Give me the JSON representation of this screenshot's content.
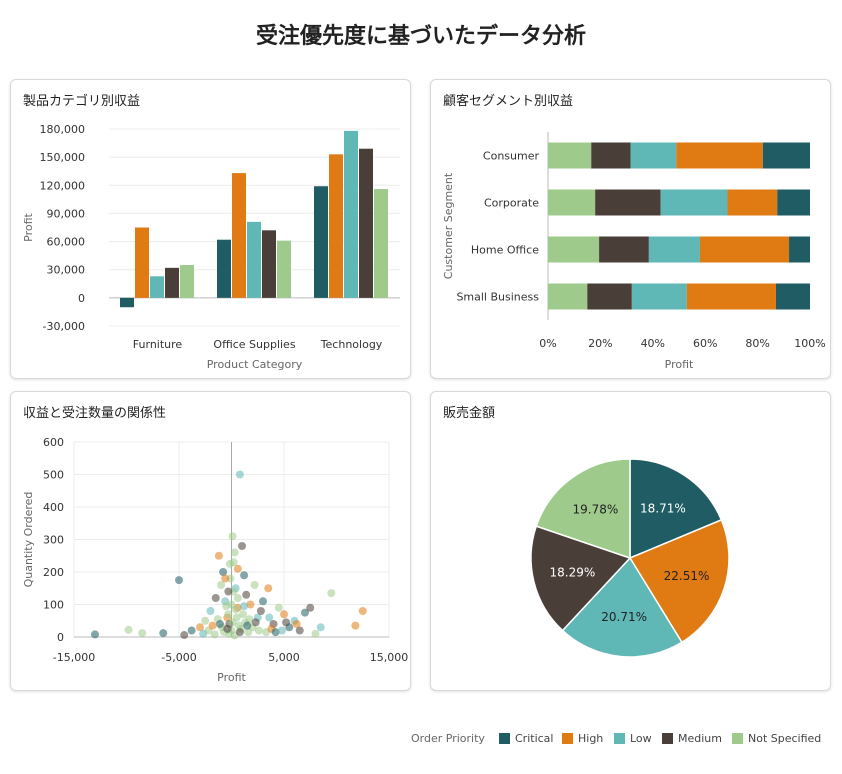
{
  "dashboard": {
    "title": "受注優先度に基づいたデータ分析"
  },
  "colors": {
    "Critical": "#1f5c63",
    "High": "#e07b14",
    "Low": "#5fb8b6",
    "Medium": "#4a3f38",
    "Not Specified": "#9ecb8c"
  },
  "legend": {
    "label": "Order Priority",
    "items": [
      "Critical",
      "High",
      "Low",
      "Medium",
      "Not Specified"
    ]
  },
  "chart_data": [
    {
      "type": "bar",
      "title": "製品カテゴリ別収益",
      "xlabel": "Product Category",
      "ylabel": "Profit",
      "categories": [
        "Furniture",
        "Office Supplies",
        "Technology"
      ],
      "ylim": [
        -30000,
        180000
      ],
      "yticks": [
        -30000,
        0,
        30000,
        60000,
        90000,
        120000,
        150000,
        180000
      ],
      "ytick_labels": [
        "-30,000",
        "0",
        "30,000",
        "60,000",
        "90,000",
        "120,000",
        "150,000",
        "180,000"
      ],
      "series": [
        {
          "name": "Critical",
          "values": [
            -10000,
            62000,
            119000
          ]
        },
        {
          "name": "High",
          "values": [
            75000,
            133000,
            153000
          ]
        },
        {
          "name": "Low",
          "values": [
            23000,
            81000,
            178000
          ]
        },
        {
          "name": "Medium",
          "values": [
            32000,
            72000,
            159000
          ]
        },
        {
          "name": "Not Specified",
          "values": [
            35000,
            61000,
            116000
          ]
        }
      ]
    },
    {
      "type": "bar",
      "orientation": "horizontal",
      "stacked": "percent",
      "title": "顧客セグメント別収益",
      "xlabel": "Profit",
      "ylabel": "Customer Segment",
      "categories": [
        "Consumer",
        "Corporate",
        "Home Office",
        "Small Business"
      ],
      "xticks": [
        0,
        20,
        40,
        60,
        80,
        100
      ],
      "xtick_labels": [
        "0%",
        "20%",
        "40%",
        "60%",
        "80%",
        "100%"
      ],
      "series": [
        {
          "name": "Not Specified",
          "values": [
            16.5,
            18,
            19.5,
            15
          ]
        },
        {
          "name": "Medium",
          "values": [
            15,
            25,
            19,
            17
          ]
        },
        {
          "name": "Low",
          "values": [
            17.5,
            25.5,
            19.5,
            21
          ]
        },
        {
          "name": "High",
          "values": [
            33,
            19,
            34,
            34
          ]
        },
        {
          "name": "Critical",
          "values": [
            18,
            12.5,
            8,
            13
          ]
        }
      ]
    },
    {
      "type": "scatter",
      "title": "収益と受注数量の関係性",
      "xlabel": "Profit",
      "ylabel": "Quantity Ordered",
      "xlim": [
        -15000,
        15000
      ],
      "ylim": [
        0,
        600
      ],
      "xticks": [
        -15000,
        -5000,
        5000,
        15000
      ],
      "xtick_labels": [
        "-15,000",
        "-5,000",
        "5,000",
        "15,000"
      ],
      "yticks": [
        0,
        100,
        200,
        300,
        400,
        500,
        600
      ],
      "ytick_labels": [
        "0",
        "100",
        "200",
        "300",
        "400",
        "500",
        "600"
      ],
      "grid": true,
      "points": [
        {
          "x": -13000,
          "y": 8,
          "s": "Critical"
        },
        {
          "x": -5000,
          "y": 175,
          "s": "Critical"
        },
        {
          "x": -9800,
          "y": 22,
          "s": "Not Specified"
        },
        {
          "x": -8500,
          "y": 12,
          "s": "Not Specified"
        },
        {
          "x": -6500,
          "y": 12,
          "s": "Critical"
        },
        {
          "x": -4500,
          "y": 6,
          "s": "Medium"
        },
        {
          "x": -3800,
          "y": 20,
          "s": "Critical"
        },
        {
          "x": -3000,
          "y": 30,
          "s": "High"
        },
        {
          "x": -2500,
          "y": 50,
          "s": "Not Specified"
        },
        {
          "x": -2000,
          "y": 80,
          "s": "Low"
        },
        {
          "x": -1500,
          "y": 120,
          "s": "Medium"
        },
        {
          "x": -1200,
          "y": 250,
          "s": "High"
        },
        {
          "x": -1000,
          "y": 160,
          "s": "Not Specified"
        },
        {
          "x": -800,
          "y": 200,
          "s": "Critical"
        },
        {
          "x": -600,
          "y": 110,
          "s": "Low"
        },
        {
          "x": -400,
          "y": 60,
          "s": "High"
        },
        {
          "x": -200,
          "y": 40,
          "s": "Medium"
        },
        {
          "x": 0,
          "y": 20,
          "s": "Not Specified"
        },
        {
          "x": 200,
          "y": 230,
          "s": "Not Specified"
        },
        {
          "x": 400,
          "y": 150,
          "s": "Low"
        },
        {
          "x": 600,
          "y": 90,
          "s": "High"
        },
        {
          "x": 800,
          "y": 500,
          "s": "Low"
        },
        {
          "x": 1000,
          "y": 280,
          "s": "Medium"
        },
        {
          "x": 1200,
          "y": 190,
          "s": "Critical"
        },
        {
          "x": 1400,
          "y": 130,
          "s": "Medium"
        },
        {
          "x": 1800,
          "y": 100,
          "s": "High"
        },
        {
          "x": 2200,
          "y": 160,
          "s": "Not Specified"
        },
        {
          "x": 2500,
          "y": 60,
          "s": "Low"
        },
        {
          "x": 3000,
          "y": 110,
          "s": "Critical"
        },
        {
          "x": 3500,
          "y": 150,
          "s": "High"
        },
        {
          "x": 4000,
          "y": 40,
          "s": "Medium"
        },
        {
          "x": 4500,
          "y": 90,
          "s": "Not Specified"
        },
        {
          "x": 5000,
          "y": 70,
          "s": "High"
        },
        {
          "x": 5500,
          "y": 30,
          "s": "Critical"
        },
        {
          "x": 6000,
          "y": 50,
          "s": "Low"
        },
        {
          "x": 6500,
          "y": 20,
          "s": "Medium"
        },
        {
          "x": 7000,
          "y": 75,
          "s": "Critical"
        },
        {
          "x": 7500,
          "y": 90,
          "s": "Medium"
        },
        {
          "x": 8000,
          "y": 10,
          "s": "Not Specified"
        },
        {
          "x": 8500,
          "y": 30,
          "s": "Low"
        },
        {
          "x": 9500,
          "y": 135,
          "s": "Not Specified"
        },
        {
          "x": 11800,
          "y": 35,
          "s": "High"
        },
        {
          "x": 12500,
          "y": 80,
          "s": "High"
        },
        {
          "x": -200,
          "y": 10,
          "s": "Not Specified"
        },
        {
          "x": 300,
          "y": 5,
          "s": "Not Specified"
        },
        {
          "x": -700,
          "y": 15,
          "s": "Not Specified"
        },
        {
          "x": 900,
          "y": 25,
          "s": "Not Specified"
        },
        {
          "x": 1600,
          "y": 15,
          "s": "Not Specified"
        },
        {
          "x": -1600,
          "y": 8,
          "s": "Not Specified"
        },
        {
          "x": 2600,
          "y": 20,
          "s": "Not Specified"
        },
        {
          "x": 100,
          "y": 45,
          "s": "Not Specified"
        },
        {
          "x": -300,
          "y": 70,
          "s": "Not Specified"
        },
        {
          "x": 500,
          "y": 60,
          "s": "Not Specified"
        },
        {
          "x": 700,
          "y": 35,
          "s": "Not Specified"
        },
        {
          "x": -900,
          "y": 30,
          "s": "Not Specified"
        },
        {
          "x": 1300,
          "y": 45,
          "s": "Not Specified"
        },
        {
          "x": 2000,
          "y": 30,
          "s": "Not Specified"
        },
        {
          "x": -2200,
          "y": 20,
          "s": "Not Specified"
        },
        {
          "x": 3300,
          "y": 15,
          "s": "Not Specified"
        },
        {
          "x": 0,
          "y": 100,
          "s": "Not Specified"
        },
        {
          "x": 400,
          "y": 85,
          "s": "Not Specified"
        },
        {
          "x": -500,
          "y": 95,
          "s": "Not Specified"
        },
        {
          "x": 200,
          "y": 140,
          "s": "Not Specified"
        },
        {
          "x": -100,
          "y": 180,
          "s": "Not Specified"
        },
        {
          "x": 600,
          "y": 120,
          "s": "Not Specified"
        },
        {
          "x": 300,
          "y": 260,
          "s": "Not Specified"
        },
        {
          "x": 1100,
          "y": 70,
          "s": "Not Specified"
        },
        {
          "x": -1300,
          "y": 55,
          "s": "Not Specified"
        },
        {
          "x": 1700,
          "y": 55,
          "s": "Not Specified"
        },
        {
          "x": -400,
          "y": 25,
          "s": "Medium"
        },
        {
          "x": 800,
          "y": 15,
          "s": "Medium"
        },
        {
          "x": 1500,
          "y": 35,
          "s": "Critical"
        },
        {
          "x": -1100,
          "y": 40,
          "s": "Critical"
        },
        {
          "x": 2300,
          "y": 45,
          "s": "Medium"
        },
        {
          "x": 3800,
          "y": 25,
          "s": "High"
        },
        {
          "x": -2700,
          "y": 10,
          "s": "Low"
        },
        {
          "x": 4200,
          "y": 15,
          "s": "Critical"
        },
        {
          "x": 600,
          "y": 210,
          "s": "High"
        },
        {
          "x": -300,
          "y": 140,
          "s": "Medium"
        },
        {
          "x": 1200,
          "y": 95,
          "s": "Low"
        },
        {
          "x": -600,
          "y": 180,
          "s": "High"
        },
        {
          "x": 2800,
          "y": 80,
          "s": "Medium"
        },
        {
          "x": 3600,
          "y": 60,
          "s": "Low"
        },
        {
          "x": -1800,
          "y": 35,
          "s": "High"
        },
        {
          "x": 5200,
          "y": 45,
          "s": "Medium"
        },
        {
          "x": 6200,
          "y": 40,
          "s": "High"
        },
        {
          "x": 4800,
          "y": 20,
          "s": "Low"
        },
        {
          "x": 100,
          "y": 310,
          "s": "Not Specified"
        },
        {
          "x": -150,
          "y": 225,
          "s": "Not Specified"
        }
      ]
    },
    {
      "type": "pie",
      "title": "販売金額",
      "slices": [
        {
          "name": "Critical",
          "value": 18.71,
          "label": "18.71%"
        },
        {
          "name": "High",
          "value": 22.51,
          "label": "22.51%"
        },
        {
          "name": "Low",
          "value": 20.71,
          "label": "20.71%"
        },
        {
          "name": "Medium",
          "value": 18.29,
          "label": "18.29%"
        },
        {
          "name": "Not Specified",
          "value": 19.78,
          "label": "19.78%"
        }
      ]
    }
  ]
}
